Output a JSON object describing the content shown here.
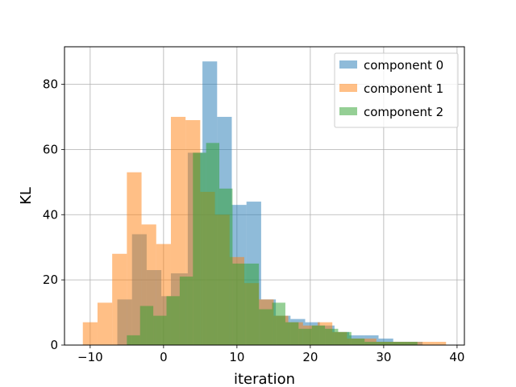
{
  "chart_data": {
    "type": "bar",
    "xlabel": "iteration",
    "ylabel": "KL",
    "xlim": [
      -13.5,
      41.0
    ],
    "ylim": [
      0,
      91.5
    ],
    "xticks": [
      -10,
      0,
      10,
      20,
      30,
      40
    ],
    "yticks": [
      0,
      20,
      40,
      60,
      80
    ],
    "grid": true,
    "legend_position": "upper right",
    "series": [
      {
        "name": "component 0",
        "color": "#1f77b4",
        "alpha": 0.5,
        "bin_edges": [
          -6.3,
          -4.3,
          -2.3,
          -0.3,
          1.0,
          3.3,
          5.3,
          7.3,
          9.3,
          11.3,
          13.3,
          15.3,
          17.3,
          19.3,
          21.3,
          23.3,
          25.3,
          27.3,
          29.3,
          31.3,
          33.3,
          35.3,
          37.3
        ],
        "counts": [
          14,
          34,
          23,
          15,
          22,
          59,
          87,
          70,
          43,
          44,
          14,
          9,
          8,
          7,
          6,
          4,
          3,
          3,
          2,
          1,
          1,
          0
        ]
      },
      {
        "name": "component 1",
        "color": "#ff7f0e",
        "alpha": 0.5,
        "bin_edges": [
          -11.0,
          -9.0,
          -7.0,
          -5.0,
          -3.0,
          -1.0,
          1.0,
          3.0,
          5.0,
          7.0,
          9.0,
          11.0,
          13.0,
          15.0,
          17.0,
          19.0,
          21.0,
          23.0,
          25.0,
          27.0,
          29.0,
          31.0,
          33.0,
          35.0,
          37.0,
          38.5
        ],
        "counts": [
          7,
          13,
          28,
          53,
          37,
          31,
          70,
          69,
          47,
          40,
          27,
          19,
          14,
          9,
          7,
          6,
          7,
          4,
          2,
          2,
          1,
          1,
          1,
          1,
          1
        ]
      },
      {
        "name": "component 2",
        "color": "#2ca02c",
        "alpha": 0.5,
        "bin_edges": [
          -5.0,
          -3.2,
          -1.4,
          0.4,
          2.2,
          4.0,
          5.8,
          7.6,
          9.4,
          11.2,
          13.0,
          14.8,
          16.6,
          18.4,
          20.2,
          22.0,
          23.8,
          25.6,
          27.4,
          29.2,
          31.0,
          32.8,
          34.6
        ],
        "counts": [
          3,
          12,
          9,
          15,
          21,
          59,
          62,
          48,
          25,
          25,
          11,
          13,
          7,
          5,
          6,
          5,
          4,
          2,
          1,
          1,
          1,
          1
        ]
      }
    ]
  }
}
